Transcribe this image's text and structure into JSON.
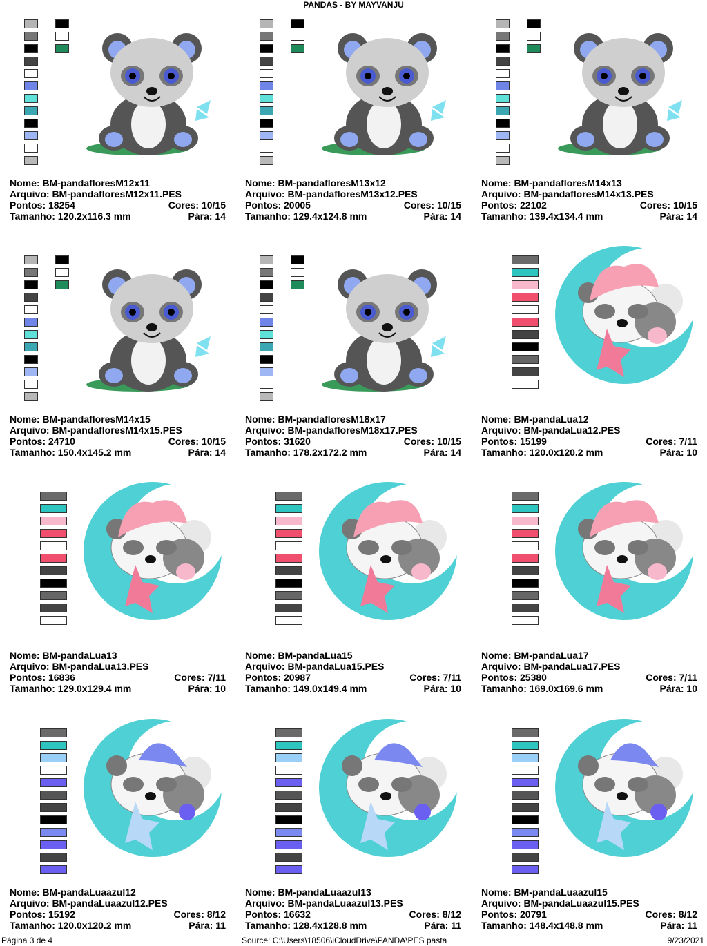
{
  "header": {
    "title": "PANDAS - BY MAYVANJU"
  },
  "designs": [
    {
      "name": "Nome: BM-pandafloresM12x11",
      "file": "Arquivo: BM-pandafloresM12x11.PES",
      "stitches": "Pontos: 18254",
      "colors": "Cores: 10/15",
      "size": "Tamanho: 120.2x116.3 mm",
      "stops": "Pára: 14",
      "swatches": [
        [
          "#b5b5b5",
          "#777777",
          "#000000",
          "#444444",
          "#ffffff",
          "#6f86e8",
          "#5fe0d8",
          "#3aa7b3",
          "#000000",
          "#9fb6f5",
          "#ffffff",
          "#b8b8b8"
        ],
        [
          "#000000",
          "#ffffff",
          "#1f8a5a"
        ]
      ]
    },
    {
      "name": "Nome: BM-pandafloresM13x12",
      "file": "Arquivo: BM-pandafloresM13x12.PES",
      "stitches": "Pontos: 20005",
      "colors": "Cores: 10/15",
      "size": "Tamanho: 129.4x124.8 mm",
      "stops": "Pára: 14",
      "swatches": [
        [
          "#b5b5b5",
          "#777777",
          "#000000",
          "#444444",
          "#ffffff",
          "#6f86e8",
          "#5fe0d8",
          "#3aa7b3",
          "#000000",
          "#9fb6f5",
          "#ffffff",
          "#b8b8b8"
        ],
        [
          "#000000",
          "#ffffff",
          "#1f8a5a"
        ]
      ]
    },
    {
      "name": "Nome: BM-pandafloresM14x13",
      "file": "Arquivo: BM-pandafloresM14x13.PES",
      "stitches": "Pontos: 22102",
      "colors": "Cores: 10/15",
      "size": "Tamanho: 139.4x134.4 mm",
      "stops": "Pára: 14",
      "swatches": [
        [
          "#b5b5b5",
          "#777777",
          "#000000",
          "#444444",
          "#ffffff",
          "#6f86e8",
          "#5fe0d8",
          "#3aa7b3",
          "#000000",
          "#9fb6f5",
          "#ffffff",
          "#b8b8b8"
        ],
        [
          "#000000",
          "#ffffff",
          "#1f8a5a"
        ]
      ]
    },
    {
      "name": "Nome: BM-pandafloresM14x15",
      "file": "Arquivo: BM-pandafloresM14x15.PES",
      "stitches": "Pontos: 24710",
      "colors": "Cores: 10/15",
      "size": "Tamanho: 150.4x145.2 mm",
      "stops": "Pára: 14",
      "swatches": [
        [
          "#b5b5b5",
          "#777777",
          "#000000",
          "#444444",
          "#ffffff",
          "#6f86e8",
          "#5fe0d8",
          "#3aa7b3",
          "#000000",
          "#9fb6f5",
          "#ffffff",
          "#b8b8b8"
        ],
        [
          "#000000",
          "#ffffff",
          "#1f8a5a"
        ]
      ]
    },
    {
      "name": "Nome: BM-pandafloresM18x17",
      "file": "Arquivo: BM-pandafloresM18x17.PES",
      "stitches": "Pontos: 31620",
      "colors": "Cores: 10/15",
      "size": "Tamanho: 178.2x172.2 mm",
      "stops": "Pára: 14",
      "swatches": [
        [
          "#b5b5b5",
          "#777777",
          "#000000",
          "#444444",
          "#ffffff",
          "#6f86e8",
          "#5fe0d8",
          "#3aa7b3",
          "#000000",
          "#9fb6f5",
          "#ffffff",
          "#b8b8b8"
        ],
        [
          "#000000",
          "#ffffff",
          "#1f8a5a"
        ]
      ]
    },
    {
      "name": "Nome: BM-pandaLua12",
      "file": "Arquivo: BM-pandaLua12.PES",
      "stitches": "Pontos: 15199",
      "colors": "Cores: 7/11",
      "size": "Tamanho: 120.0x120.2 mm",
      "stops": "Pára: 10",
      "swatches": [
        [
          "#6a6a6a",
          "#2ec4c0",
          "#f8b8cc",
          "#f0506e",
          "#ffffff",
          "#f0506e",
          "#444444",
          "#000000",
          "#666666",
          "#444444",
          "#ffffff"
        ]
      ]
    },
    {
      "name": "Nome: BM-pandaLua13",
      "file": "Arquivo: BM-pandaLua13.PES",
      "stitches": "Pontos: 16836",
      "colors": "Cores: 7/11",
      "size": "Tamanho: 129.0x129.4 mm",
      "stops": "Pára: 10",
      "swatches": [
        [
          "#6a6a6a",
          "#2ec4c0",
          "#f8b8cc",
          "#f0506e",
          "#ffffff",
          "#f0506e",
          "#444444",
          "#000000",
          "#666666",
          "#444444",
          "#ffffff"
        ]
      ]
    },
    {
      "name": "Nome: BM-pandaLua15",
      "file": "Arquivo: BM-pandaLua15.PES",
      "stitches": "Pontos: 20987",
      "colors": "Cores: 7/11",
      "size": "Tamanho: 149.0x149.4 mm",
      "stops": "Pára: 10",
      "swatches": [
        [
          "#6a6a6a",
          "#2ec4c0",
          "#f8b8cc",
          "#f0506e",
          "#ffffff",
          "#f0506e",
          "#444444",
          "#000000",
          "#666666",
          "#444444",
          "#ffffff"
        ]
      ]
    },
    {
      "name": "Nome: BM-pandaLua17",
      "file": "Arquivo: BM-pandaLua17.PES",
      "stitches": "Pontos: 25380",
      "colors": "Cores: 7/11",
      "size": "Tamanho: 169.0x169.6 mm",
      "stops": "Pára: 10",
      "swatches": [
        [
          "#6a6a6a",
          "#2ec4c0",
          "#f8b8cc",
          "#f0506e",
          "#ffffff",
          "#f0506e",
          "#444444",
          "#000000",
          "#666666",
          "#444444",
          "#ffffff"
        ]
      ]
    },
    {
      "name": "Nome: BM-pandaLuaazul12",
      "file": "Arquivo: BM-pandaLuaazul12.PES",
      "stitches": "Pontos: 15192",
      "colors": "Cores: 8/12",
      "size": "Tamanho: 120.0x120.2 mm",
      "stops": "Pára: 11",
      "swatches": [
        [
          "#6a6a6a",
          "#2ec4c0",
          "#9ad0f8",
          "#ffffff",
          "#6a5ff0",
          "#555555",
          "#444444",
          "#000000",
          "#7a8af0",
          "#6a5ff0",
          "#444444",
          "#6a5ff0"
        ]
      ]
    },
    {
      "name": "Nome: BM-pandaLuaazul13",
      "file": "Arquivo: BM-pandaLuaazul13.PES",
      "stitches": "Pontos: 16632",
      "colors": "Cores: 8/12",
      "size": "Tamanho: 128.4x128.8 mm",
      "stops": "Pára: 11",
      "swatches": [
        [
          "#6a6a6a",
          "#2ec4c0",
          "#9ad0f8",
          "#ffffff",
          "#6a5ff0",
          "#555555",
          "#444444",
          "#000000",
          "#7a8af0",
          "#6a5ff0",
          "#444444",
          "#6a5ff0"
        ]
      ]
    },
    {
      "name": "Nome: BM-pandaLuaazul15",
      "file": "Arquivo: BM-pandaLuaazul15.PES",
      "stitches": "Pontos: 20791",
      "colors": "Cores: 8/12",
      "size": "Tamanho: 148.4x148.8 mm",
      "stops": "Pára: 11",
      "swatches": [
        [
          "#6a6a6a",
          "#2ec4c0",
          "#9ad0f8",
          "#ffffff",
          "#6a5ff0",
          "#555555",
          "#444444",
          "#000000",
          "#7a8af0",
          "#6a5ff0",
          "#444444",
          "#6a5ff0"
        ]
      ]
    }
  ],
  "footer": {
    "page": "Página 3 de 4",
    "source": "Source: C:\\Users\\18506\\iCloudDrive\\PANDA\\PES pasta",
    "date": "9/23/2021"
  }
}
